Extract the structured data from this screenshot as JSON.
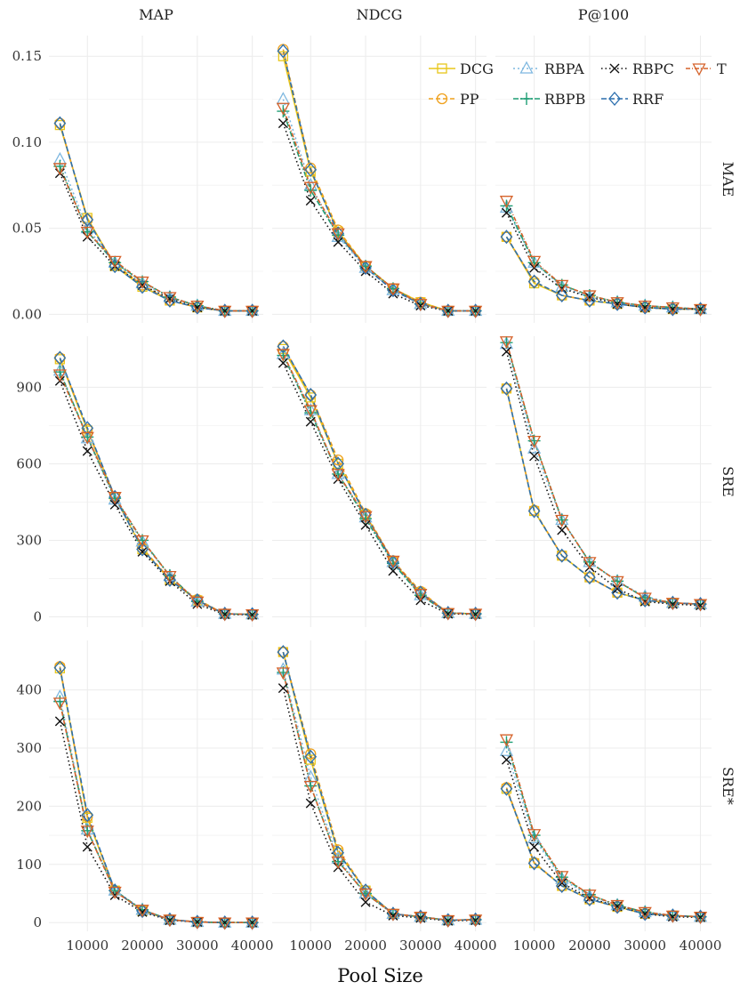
{
  "chart_data": {
    "type": "line",
    "xlabel": "Pool Size",
    "x": [
      5000,
      10000,
      15000,
      20000,
      25000,
      30000,
      35000,
      40000
    ],
    "xticks": [
      10000,
      20000,
      30000,
      40000
    ],
    "xlim": [
      3000,
      42000
    ],
    "columns": [
      "MAP",
      "NDCG",
      "P@100"
    ],
    "rows": [
      {
        "label": "MAE",
        "ylim": [
          -0.005,
          0.162
        ],
        "yticks": [
          0,
          0.05,
          0.1,
          0.15
        ],
        "ytick_labels": [
          "0.00",
          "0.05",
          "0.10",
          "0.15"
        ]
      },
      {
        "label": "SRE",
        "ylim": [
          -40,
          1100
        ],
        "yticks": [
          0,
          300,
          600,
          900
        ],
        "ytick_labels": [
          "0",
          "300",
          "600",
          "900"
        ]
      },
      {
        "label": "SRE*",
        "ylim": [
          -15,
          485
        ],
        "yticks": [
          0,
          100,
          200,
          300,
          400
        ],
        "ytick_labels": [
          "0",
          "100",
          "200",
          "300",
          "400"
        ]
      }
    ],
    "series_styles": [
      {
        "name": "DCG",
        "color": "#E8C71A",
        "marker": "square",
        "dash": ""
      },
      {
        "name": "PP",
        "color": "#F0A11C",
        "marker": "circle",
        "dash": "5,3"
      },
      {
        "name": "RBPA",
        "color": "#7FB8E0",
        "marker": "triangle-up",
        "dash": "2,3"
      },
      {
        "name": "RBPB",
        "color": "#1E9E74",
        "marker": "plus",
        "dash": "6,2,2,2"
      },
      {
        "name": "RBPC",
        "color": "#111111",
        "marker": "x",
        "dash": "1.5,3"
      },
      {
        "name": "RRF",
        "color": "#2C6FAE",
        "marker": "diamond",
        "dash": "6,3"
      },
      {
        "name": "T",
        "color": "#D5622A",
        "marker": "triangle-down",
        "dash": "5,2,1,2"
      }
    ],
    "legend_order": [
      "DCG",
      "RBPA",
      "RBPC",
      "T",
      "PP",
      "RBPB",
      "RRF"
    ],
    "legend_position": "top-right",
    "panels": [
      {
        "row": "MAE",
        "col": "MAP",
        "series": [
          {
            "name": "DCG",
            "values": [
              0.11,
              0.056,
              0.028,
              0.016,
              0.008,
              0.004,
              0.002,
              0.002
            ]
          },
          {
            "name": "PP",
            "values": [
              0.111,
              0.055,
              0.029,
              0.017,
              0.008,
              0.004,
              0.002,
              0.002
            ]
          },
          {
            "name": "RBPA",
            "values": [
              0.09,
              0.05,
              0.03,
              0.018,
              0.01,
              0.005,
              0.002,
              0.002
            ]
          },
          {
            "name": "RBPB",
            "values": [
              0.086,
              0.048,
              0.03,
              0.019,
              0.01,
              0.005,
              0.002,
              0.002
            ]
          },
          {
            "name": "RBPC",
            "values": [
              0.082,
              0.045,
              0.028,
              0.017,
              0.009,
              0.004,
              0.002,
              0.002
            ]
          },
          {
            "name": "RRF",
            "values": [
              0.111,
              0.055,
              0.028,
              0.016,
              0.008,
              0.004,
              0.002,
              0.002
            ]
          },
          {
            "name": "T",
            "values": [
              0.085,
              0.048,
              0.031,
              0.019,
              0.01,
              0.005,
              0.002,
              0.002
            ]
          }
        ]
      },
      {
        "row": "MAE",
        "col": "NDCG",
        "series": [
          {
            "name": "DCG",
            "values": [
              0.15,
              0.083,
              0.048,
              0.028,
              0.015,
              0.007,
              0.002,
              0.002
            ]
          },
          {
            "name": "PP",
            "values": [
              0.154,
              0.085,
              0.049,
              0.028,
              0.015,
              0.007,
              0.002,
              0.002
            ]
          },
          {
            "name": "RBPA",
            "values": [
              0.125,
              0.075,
              0.045,
              0.027,
              0.014,
              0.006,
              0.002,
              0.002
            ]
          },
          {
            "name": "RBPB",
            "values": [
              0.118,
              0.072,
              0.046,
              0.028,
              0.015,
              0.006,
              0.002,
              0.002
            ]
          },
          {
            "name": "RBPC",
            "values": [
              0.111,
              0.066,
              0.042,
              0.025,
              0.012,
              0.005,
              0.002,
              0.002
            ]
          },
          {
            "name": "RRF",
            "values": [
              0.153,
              0.084,
              0.047,
              0.027,
              0.014,
              0.006,
              0.002,
              0.002
            ]
          },
          {
            "name": "T",
            "values": [
              0.12,
              0.074,
              0.047,
              0.028,
              0.015,
              0.006,
              0.002,
              0.002
            ]
          }
        ]
      },
      {
        "row": "MAE",
        "col": "P@100",
        "series": [
          {
            "name": "DCG",
            "values": [
              0.045,
              0.018,
              0.011,
              0.008,
              0.006,
              0.004,
              0.003,
              0.003
            ]
          },
          {
            "name": "PP",
            "values": [
              0.045,
              0.019,
              0.011,
              0.008,
              0.006,
              0.004,
              0.003,
              0.003
            ]
          },
          {
            "name": "RBPA",
            "values": [
              0.062,
              0.03,
              0.016,
              0.01,
              0.007,
              0.005,
              0.004,
              0.003
            ]
          },
          {
            "name": "RBPB",
            "values": [
              0.063,
              0.03,
              0.017,
              0.011,
              0.007,
              0.005,
              0.004,
              0.003
            ]
          },
          {
            "name": "RBPC",
            "values": [
              0.059,
              0.027,
              0.015,
              0.01,
              0.006,
              0.004,
              0.003,
              0.003
            ]
          },
          {
            "name": "RRF",
            "values": [
              0.045,
              0.019,
              0.011,
              0.008,
              0.006,
              0.004,
              0.003,
              0.003
            ]
          },
          {
            "name": "T",
            "values": [
              0.066,
              0.031,
              0.017,
              0.011,
              0.007,
              0.005,
              0.004,
              0.003
            ]
          }
        ]
      },
      {
        "row": "SRE",
        "col": "MAP",
        "series": [
          {
            "name": "DCG",
            "values": [
              1010,
              730,
              470,
              265,
              145,
              65,
              12,
              10
            ]
          },
          {
            "name": "PP",
            "values": [
              1015,
              735,
              470,
              270,
              148,
              68,
              12,
              10
            ]
          },
          {
            "name": "RBPA",
            "values": [
              965,
              700,
              460,
              295,
              160,
              60,
              12,
              10
            ]
          },
          {
            "name": "RBPB",
            "values": [
              960,
              705,
              465,
              300,
              162,
              60,
              12,
              10
            ]
          },
          {
            "name": "RBPC",
            "values": [
              925,
              650,
              440,
              255,
              140,
              50,
              10,
              8
            ]
          },
          {
            "name": "RRF",
            "values": [
              1015,
              740,
              470,
              265,
              145,
              65,
              12,
              10
            ]
          },
          {
            "name": "T",
            "values": [
              950,
              705,
              470,
              300,
              160,
              60,
              12,
              10
            ]
          }
        ]
      },
      {
        "row": "SRE",
        "col": "NDCG",
        "series": [
          {
            "name": "DCG",
            "values": [
              1050,
              860,
              600,
              400,
              215,
              95,
              15,
              12
            ]
          },
          {
            "name": "PP",
            "values": [
              1060,
              870,
              615,
              405,
              220,
              100,
              15,
              12
            ]
          },
          {
            "name": "RBPA",
            "values": [
              1030,
              810,
              560,
              390,
              215,
              85,
              15,
              12
            ]
          },
          {
            "name": "RBPB",
            "values": [
              1025,
              800,
              560,
              385,
              210,
              85,
              15,
              12
            ]
          },
          {
            "name": "RBPC",
            "values": [
              995,
              765,
              540,
              360,
              180,
              65,
              12,
              10
            ]
          },
          {
            "name": "RRF",
            "values": [
              1060,
              870,
              600,
              400,
              215,
              95,
              15,
              12
            ]
          },
          {
            "name": "T",
            "values": [
              1030,
              810,
              560,
              395,
              220,
              90,
              15,
              12
            ]
          }
        ]
      },
      {
        "row": "SRE",
        "col": "P@100",
        "series": [
          {
            "name": "DCG",
            "values": [
              895,
              415,
              240,
              155,
              95,
              65,
              55,
              50
            ]
          },
          {
            "name": "PP",
            "values": [
              895,
              418,
              240,
              155,
              95,
              65,
              55,
              50
            ]
          },
          {
            "name": "RBPA",
            "values": [
              1070,
              660,
              380,
              215,
              140,
              80,
              55,
              50
            ]
          },
          {
            "name": "RBPB",
            "values": [
              1075,
              690,
              380,
              215,
              140,
              75,
              55,
              50
            ]
          },
          {
            "name": "RBPC",
            "values": [
              1040,
              630,
              340,
              195,
              110,
              60,
              50,
              45
            ]
          },
          {
            "name": "RRF",
            "values": [
              895,
              415,
              240,
              155,
              95,
              65,
              55,
              50
            ]
          },
          {
            "name": "T",
            "values": [
              1080,
              690,
              380,
              215,
              140,
              75,
              55,
              50
            ]
          }
        ]
      },
      {
        "row": "SRE*",
        "col": "MAP",
        "series": [
          {
            "name": "DCG",
            "values": [
              437,
              180,
              55,
              20,
              5,
              1,
              0,
              0
            ]
          },
          {
            "name": "PP",
            "values": [
              440,
              182,
              55,
              20,
              5,
              1,
              0,
              0
            ]
          },
          {
            "name": "RBPA",
            "values": [
              388,
              160,
              55,
              22,
              5,
              1,
              0,
              0
            ]
          },
          {
            "name": "RBPB",
            "values": [
              380,
              158,
              55,
              22,
              5,
              1,
              0,
              0
            ]
          },
          {
            "name": "RBPC",
            "values": [
              346,
              130,
              47,
              18,
              4,
              1,
              0,
              0
            ]
          },
          {
            "name": "RRF",
            "values": [
              438,
              185,
              55,
              20,
              5,
              1,
              0,
              0
            ]
          },
          {
            "name": "T",
            "values": [
              378,
              158,
              53,
              22,
              5,
              1,
              0,
              0
            ]
          }
        ]
      },
      {
        "row": "SRE*",
        "col": "NDCG",
        "series": [
          {
            "name": "DCG",
            "values": [
              465,
              280,
              120,
              55,
              15,
              10,
              4,
              5
            ]
          },
          {
            "name": "PP",
            "values": [
              465,
              290,
              125,
              55,
              15,
              10,
              4,
              5
            ]
          },
          {
            "name": "RBPA",
            "values": [
              435,
              250,
              110,
              50,
              15,
              10,
              4,
              5
            ]
          },
          {
            "name": "RBPB",
            "values": [
              430,
              235,
              105,
              50,
              15,
              10,
              4,
              5
            ]
          },
          {
            "name": "RBPC",
            "values": [
              403,
              205,
              95,
              35,
              12,
              8,
              3,
              4
            ]
          },
          {
            "name": "RRF",
            "values": [
              465,
              285,
              120,
              55,
              15,
              10,
              4,
              5
            ]
          },
          {
            "name": "T",
            "values": [
              430,
              235,
              105,
              50,
              15,
              10,
              4,
              5
            ]
          }
        ]
      },
      {
        "row": "SRE*",
        "col": "P@100",
        "series": [
          {
            "name": "DCG",
            "values": [
              230,
              102,
              63,
              40,
              27,
              15,
              12,
              10
            ]
          },
          {
            "name": "PP",
            "values": [
              232,
              103,
              63,
              40,
              27,
              15,
              12,
              10
            ]
          },
          {
            "name": "RBPA",
            "values": [
              295,
              145,
              75,
              45,
              30,
              18,
              12,
              10
            ]
          },
          {
            "name": "RBPB",
            "values": [
              310,
              150,
              78,
              48,
              30,
              18,
              12,
              10
            ]
          },
          {
            "name": "RBPC",
            "values": [
              280,
              130,
              68,
              42,
              28,
              15,
              10,
              9
            ]
          },
          {
            "name": "RRF",
            "values": [
              230,
              102,
              63,
              40,
              27,
              15,
              12,
              10
            ]
          },
          {
            "name": "T",
            "values": [
              315,
              152,
              80,
              48,
              30,
              18,
              12,
              10
            ]
          }
        ]
      }
    ]
  }
}
